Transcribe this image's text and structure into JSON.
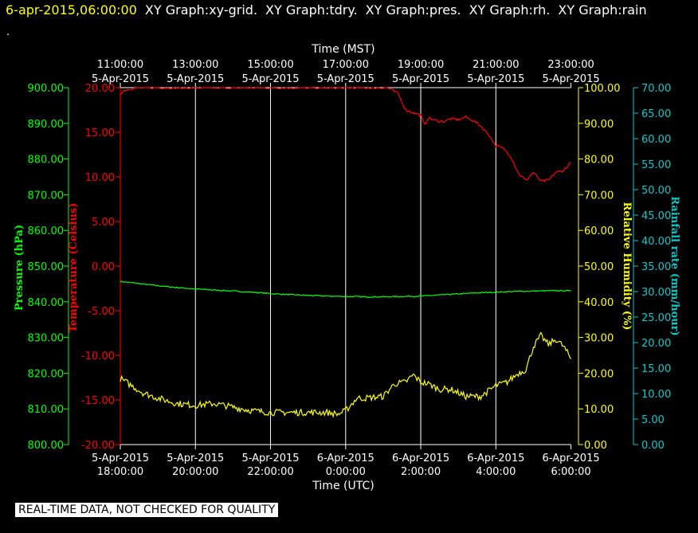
{
  "header": {
    "date": "6-apr-2015,06:00:00",
    "graphs": [
      "XY Graph:xy-grid.",
      "XY Graph:tdry.",
      "XY Graph:pres.",
      "XY Graph:rh.",
      "XY Graph:rain"
    ],
    "dot": "."
  },
  "disclaimer": "REAL-TIME DATA, NOT CHECKED FOR QUALITY",
  "colors": {
    "background": "#000000",
    "pressure": "#00ff00",
    "temperature": "#ff0000",
    "humidity": "#ffff00",
    "rain": "#00cccc",
    "grid": "#ffffff"
  },
  "chart_data": {
    "type": "line",
    "x_top_title": "Time (MST)",
    "x_bottom_title": "Time (UTC)",
    "x_ticks_top": [
      {
        "time": "11:00:00",
        "date": "5-Apr-2015"
      },
      {
        "time": "13:00:00",
        "date": "5-Apr-2015"
      },
      {
        "time": "15:00:00",
        "date": "5-Apr-2015"
      },
      {
        "time": "17:00:00",
        "date": "5-Apr-2015"
      },
      {
        "time": "19:00:00",
        "date": "5-Apr-2015"
      },
      {
        "time": "21:00:00",
        "date": "5-Apr-2015"
      },
      {
        "time": "23:00:00",
        "date": "5-Apr-2015"
      }
    ],
    "x_ticks_bottom": [
      {
        "date": "5-Apr-2015",
        "time": "18:00:00"
      },
      {
        "date": "5-Apr-2015",
        "time": "20:00:00"
      },
      {
        "date": "5-Apr-2015",
        "time": "22:00:00"
      },
      {
        "date": "6-Apr-2015",
        "time": "0:00:00"
      },
      {
        "date": "6-Apr-2015",
        "time": "2:00:00"
      },
      {
        "date": "6-Apr-2015",
        "time": "4:00:00"
      },
      {
        "date": "6-Apr-2015",
        "time": "6:00:00"
      }
    ],
    "x_range_hours_utc": [
      0,
      12.2
    ],
    "x_tick_hours": [
      0,
      2,
      4,
      6,
      8,
      10,
      12
    ],
    "grid": "vertical",
    "axes": {
      "pressure": {
        "label": "Pressure (hPa)",
        "range": [
          800,
          900
        ],
        "ticks": [
          "800.00",
          "810.00",
          "820.00",
          "830.00",
          "840.00",
          "850.00",
          "860.00",
          "870.00",
          "880.00",
          "890.00",
          "900.00"
        ]
      },
      "temperature": {
        "label": "Temperature (Celsius)",
        "range": [
          -20,
          20
        ],
        "ticks": [
          "-20.00",
          "-15.00",
          "-10.00",
          "-5.00",
          "0.00",
          "5.00",
          "10.00",
          "15.00",
          "20.00"
        ]
      },
      "humidity": {
        "label": "Relative Humidity (%)",
        "range": [
          0,
          100
        ],
        "ticks": [
          "0.00",
          "10.00",
          "20.00",
          "30.00",
          "40.00",
          "50.00",
          "60.00",
          "70.00",
          "80.00",
          "90.00",
          "100.00"
        ]
      },
      "rain": {
        "label": "Rainfall rate (mm/hour)",
        "range": [
          0,
          70
        ],
        "ticks": [
          "0.00",
          "5.00",
          "10.00",
          "15.00",
          "20.00",
          "25.00",
          "30.00",
          "35.00",
          "40.00",
          "45.00",
          "50.00",
          "55.00",
          "60.00",
          "65.00",
          "70.00"
        ]
      }
    },
    "series": [
      {
        "name": "Pressure",
        "axis": "pressure",
        "noise": 0.15,
        "x": [
          0,
          0.5,
          1,
          1.5,
          2,
          2.5,
          3,
          3.5,
          4,
          4.5,
          5,
          5.5,
          6,
          6.5,
          7,
          7.5,
          8,
          8.5,
          9,
          9.5,
          10,
          10.5,
          11,
          11.5,
          12.0
        ],
        "y": [
          845.7,
          845.1,
          844.5,
          844.0,
          843.6,
          843.3,
          843.0,
          842.7,
          842.3,
          842.0,
          841.8,
          841.6,
          841.5,
          841.4,
          841.4,
          841.5,
          841.6,
          841.9,
          842.2,
          842.5,
          842.7,
          842.9,
          843.0,
          843.1,
          843.1
        ]
      },
      {
        "name": "Temperature",
        "axis": "temperature",
        "noise": 0.15,
        "x": [
          0,
          0.1,
          0.3,
          0.5,
          0.6,
          7.1,
          7.2,
          7.4,
          7.5,
          7.6,
          7.8,
          8.0,
          8.1,
          8.2,
          8.4,
          8.6,
          8.8,
          9.0,
          9.2,
          9.4,
          9.6,
          9.8,
          10.0,
          10.2,
          10.4,
          10.6,
          10.8,
          11.0,
          11.2,
          11.4,
          11.6,
          11.8,
          12.0
        ],
        "y": [
          19.3,
          19.7,
          19.9,
          20.0,
          20.0,
          20.0,
          19.8,
          19.3,
          18.4,
          17.5,
          17.2,
          16.9,
          15.8,
          16.6,
          16.3,
          16.2,
          16.5,
          16.4,
          16.7,
          16.3,
          15.7,
          14.8,
          13.5,
          13.2,
          12.3,
          10.4,
          9.6,
          10.5,
          9.5,
          9.6,
          10.5,
          10.7,
          11.6
        ]
      },
      {
        "name": "Relative Humidity",
        "axis": "humidity",
        "noise": 0.9,
        "x": [
          0,
          0.3,
          0.6,
          1,
          1.5,
          2,
          2.5,
          3,
          3.5,
          4,
          4.5,
          5,
          5.5,
          5.8,
          6.0,
          6.3,
          6.5,
          7,
          7.3,
          7.6,
          7.8,
          8,
          8.2,
          8.5,
          8.8,
          9.2,
          9.6,
          10,
          10.3,
          10.6,
          10.8,
          11,
          11.2,
          11.4,
          11.6,
          11.8,
          12.0
        ],
        "y": [
          18.5,
          16.5,
          14.5,
          13.0,
          11.5,
          11.0,
          11.5,
          10.5,
          9.5,
          9.0,
          9.0,
          9.0,
          9.0,
          8.5,
          9.5,
          13.0,
          13.0,
          13.5,
          17.0,
          17.5,
          19.5,
          17.5,
          17.0,
          15.5,
          15.5,
          13.5,
          13.5,
          16.5,
          17.5,
          20.0,
          21.0,
          27.5,
          30.5,
          28.0,
          29.5,
          27.5,
          24.0
        ]
      }
    ]
  }
}
